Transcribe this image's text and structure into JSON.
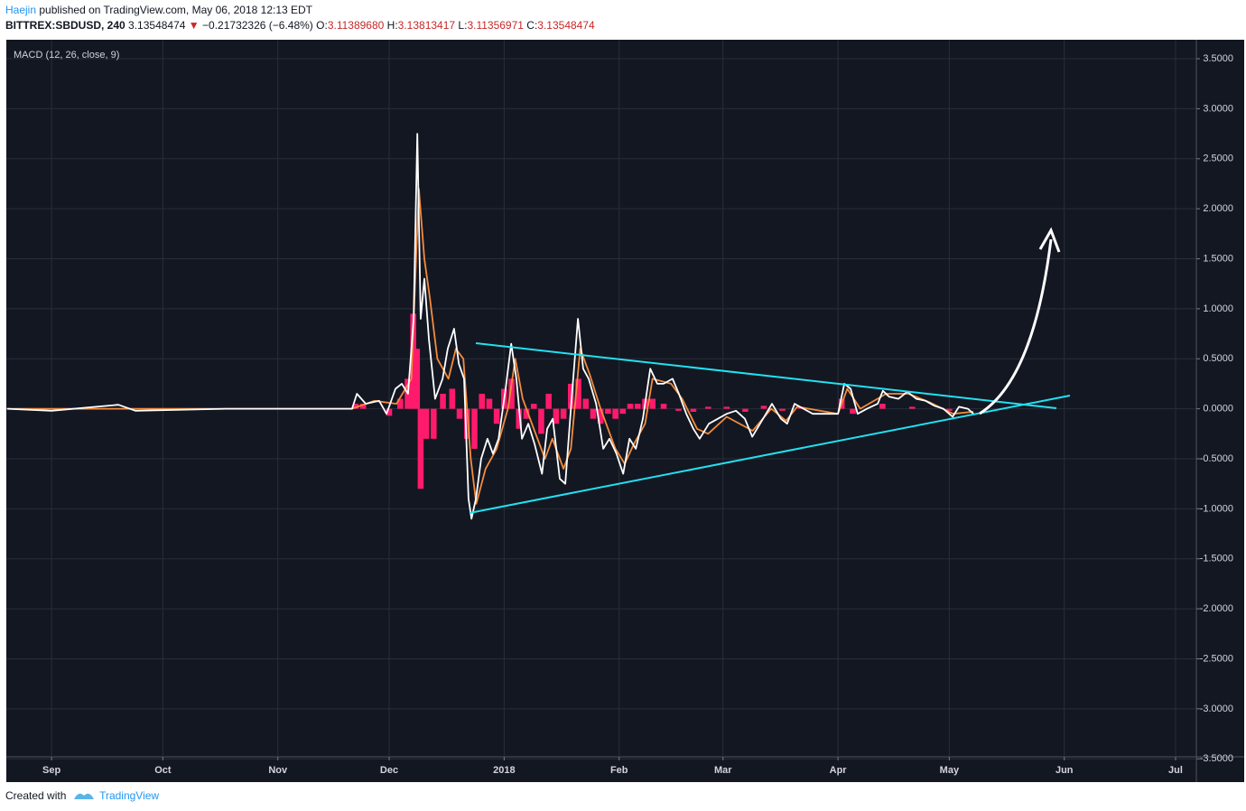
{
  "header": {
    "author": "Haejin",
    "published": "published on TradingView.com, May 06, 2018 12:13 EDT",
    "symbol": "BITTREX:SBDUSD, 240",
    "price": "3.13548474",
    "change": "−0.21732326 (−6.48%)",
    "ohlc": [
      {
        "label": "O:",
        "value": "3.11389680"
      },
      {
        "label": "H:",
        "value": "3.13813417"
      },
      {
        "label": "L:",
        "value": "3.11356971"
      },
      {
        "label": "C:",
        "value": "3.13548474"
      }
    ]
  },
  "footer": {
    "created": "Created with",
    "brand": "TradingView"
  },
  "chart_data": {
    "type": "line",
    "title": "MACD (12, 26, close, 9)",
    "xlim": [
      230.8,
      551.6
    ],
    "xticks": [
      {
        "value": 243,
        "label": "Sep"
      },
      {
        "value": 273,
        "label": "Oct"
      },
      {
        "value": 304,
        "label": "Nov"
      },
      {
        "value": 334,
        "label": "Dec"
      },
      {
        "value": 365,
        "label": "2018"
      },
      {
        "value": 396,
        "label": "Feb"
      },
      {
        "value": 424,
        "label": "Mar"
      },
      {
        "value": 455,
        "label": "Apr"
      },
      {
        "value": 485,
        "label": "May"
      },
      {
        "value": 516,
        "label": "Jun"
      },
      {
        "value": 546,
        "label": "Jul"
      }
    ],
    "ylim": [
      -3.48,
      3.69
    ],
    "yticks": [
      {
        "value": 3.5,
        "label": "3.5000"
      },
      {
        "value": 3,
        "label": "3.0000"
      },
      {
        "value": 2.5,
        "label": "2.5000"
      },
      {
        "value": 2,
        "label": "2.0000"
      },
      {
        "value": 1.5,
        "label": "1.5000"
      },
      {
        "value": 1,
        "label": "1.0000"
      },
      {
        "value": 0.5,
        "label": "0.5000"
      },
      {
        "value": 0,
        "label": "0.0000"
      },
      {
        "value": -0.5,
        "label": "-0.5000"
      },
      {
        "value": -1,
        "label": "-1.0000"
      },
      {
        "value": -1.5,
        "label": "-1.5000"
      },
      {
        "value": -2,
        "label": "-2.0000"
      },
      {
        "value": -2.5,
        "label": "-2.5000"
      },
      {
        "value": -3,
        "label": "-3.0000"
      },
      {
        "value": -3.5,
        "label": "-3.5000"
      }
    ],
    "grid": true,
    "series": [
      {
        "type": "bar",
        "color": "#ff1a6c",
        "x": [
          325,
          327,
          334,
          337,
          339,
          340.5,
          341.5,
          342.5,
          344,
          346,
          348.5,
          351,
          353,
          355,
          357,
          359,
          361,
          363,
          365,
          367,
          369,
          371,
          373,
          375,
          377,
          379,
          381,
          383,
          385,
          387,
          389,
          391,
          393,
          395,
          397,
          399,
          401,
          403,
          405,
          408,
          412,
          416,
          420,
          425,
          430,
          435,
          440,
          445,
          456,
          459,
          467,
          475,
          485,
          490
        ],
        "values": [
          0.05,
          0.05,
          -0.07,
          0.1,
          0.3,
          0.95,
          0.6,
          -0.8,
          -0.3,
          -0.3,
          0.15,
          0.2,
          -0.1,
          -0.3,
          -0.4,
          0.15,
          0.1,
          -0.15,
          0.2,
          0.3,
          -0.2,
          -0.1,
          0.05,
          -0.25,
          0.15,
          -0.15,
          -0.1,
          0.25,
          0.3,
          0.1,
          -0.1,
          -0.15,
          -0.05,
          -0.1,
          -0.05,
          0.05,
          0.05,
          0.1,
          0.1,
          0.05,
          -0.02,
          -0.03,
          0.02,
          0.02,
          -0.03,
          0.03,
          -0.02,
          0.02,
          0.1,
          -0.05,
          0.05,
          0.02,
          -0.02,
          0
        ]
      },
      {
        "type": "line",
        "color": "#f48c3c",
        "x": [
          231,
          324,
          330,
          336,
          340,
          342,
          343.5,
          345,
          347,
          350,
          352,
          354,
          356,
          357.5,
          360,
          363,
          366,
          368,
          370,
          373,
          376,
          378,
          381,
          383,
          385.5,
          388,
          391,
          395,
          397.5,
          400,
          403,
          405,
          410,
          413,
          417,
          420,
          425,
          432,
          437,
          441,
          444,
          455,
          457.5,
          461,
          468,
          474,
          480,
          486,
          491.5
        ],
        "values": [
          0,
          0,
          0.08,
          0.05,
          0.3,
          2.2,
          1.5,
          1.1,
          0.5,
          0.3,
          0.6,
          0.5,
          -0.5,
          -0.95,
          -0.6,
          -0.4,
          0,
          0.5,
          0.1,
          -0.2,
          -0.5,
          -0.3,
          -0.6,
          -0.4,
          0.6,
          0.35,
          0,
          -0.4,
          -0.55,
          -0.35,
          -0.15,
          0.3,
          0.25,
          0.1,
          -0.2,
          -0.25,
          -0.08,
          -0.22,
          0,
          -0.12,
          0.02,
          -0.05,
          0.2,
          0,
          0.15,
          0.15,
          0.06,
          -0.05,
          -0.03
        ]
      },
      {
        "type": "line",
        "color": "#ffffff",
        "x": [
          231,
          243,
          261,
          265.6,
          290,
          324,
          325.3,
          327.7,
          331.3,
          333.3,
          335.7,
          337.4,
          339.1,
          340.6,
          341.6,
          342.5,
          343.5,
          344.7,
          346.4,
          348.4,
          349.8,
          351.5,
          352.8,
          354.2,
          355.4,
          356.2,
          357.4,
          358.8,
          360.5,
          362,
          363.5,
          365.4,
          366.9,
          368.3,
          369.8,
          371.5,
          373.2,
          375.2,
          376.6,
          378.1,
          380,
          381.5,
          383.2,
          384.9,
          386.3,
          387.8,
          389.8,
          391.7,
          393.4,
          395.3,
          397.1,
          398.8,
          400.5,
          402.4,
          404.4,
          406.3,
          408,
          410.4,
          412.1,
          414.1,
          416,
          417.7,
          420.2,
          422.6,
          425,
          427.5,
          429.9,
          431.9,
          434.8,
          437.2,
          439.6,
          441.3,
          443.3,
          445.7,
          448.2,
          451.8,
          455,
          456.7,
          458.4,
          460.3,
          462.8,
          465.7,
          467.1,
          468.8,
          471.3,
          473.7,
          476.1,
          478.6,
          481,
          483.4,
          485.9,
          487.6,
          490,
          491.5
        ],
        "values": [
          0,
          -0.02,
          0.04,
          -0.02,
          0,
          0,
          0.15,
          0.05,
          0.08,
          -0.05,
          0.2,
          0.25,
          0.15,
          0.9,
          2.75,
          0.9,
          1.3,
          0.7,
          0.1,
          0.3,
          0.6,
          0.8,
          0.45,
          0.3,
          -0.9,
          -1.1,
          -0.9,
          -0.5,
          -0.3,
          -0.45,
          -0.3,
          0.2,
          0.65,
          0.3,
          -0.3,
          -0.15,
          -0.35,
          -0.65,
          -0.2,
          -0.1,
          -0.7,
          -0.75,
          0.1,
          0.9,
          0.4,
          0.3,
          0.05,
          -0.4,
          -0.3,
          -0.45,
          -0.65,
          -0.3,
          -0.4,
          -0.1,
          0.4,
          0.25,
          0.25,
          0.3,
          0.15,
          -0.05,
          -0.2,
          -0.3,
          -0.15,
          -0.1,
          -0.05,
          -0.02,
          -0.1,
          -0.28,
          -0.1,
          0.05,
          -0.1,
          -0.15,
          0.05,
          0,
          -0.05,
          -0.05,
          -0.05,
          0.25,
          0.2,
          -0.05,
          0,
          0.05,
          0.18,
          0.12,
          0.1,
          0.17,
          0.1,
          0.08,
          0.03,
          0,
          -0.08,
          0.02,
          0,
          -0.05
        ]
      }
    ]
  }
}
